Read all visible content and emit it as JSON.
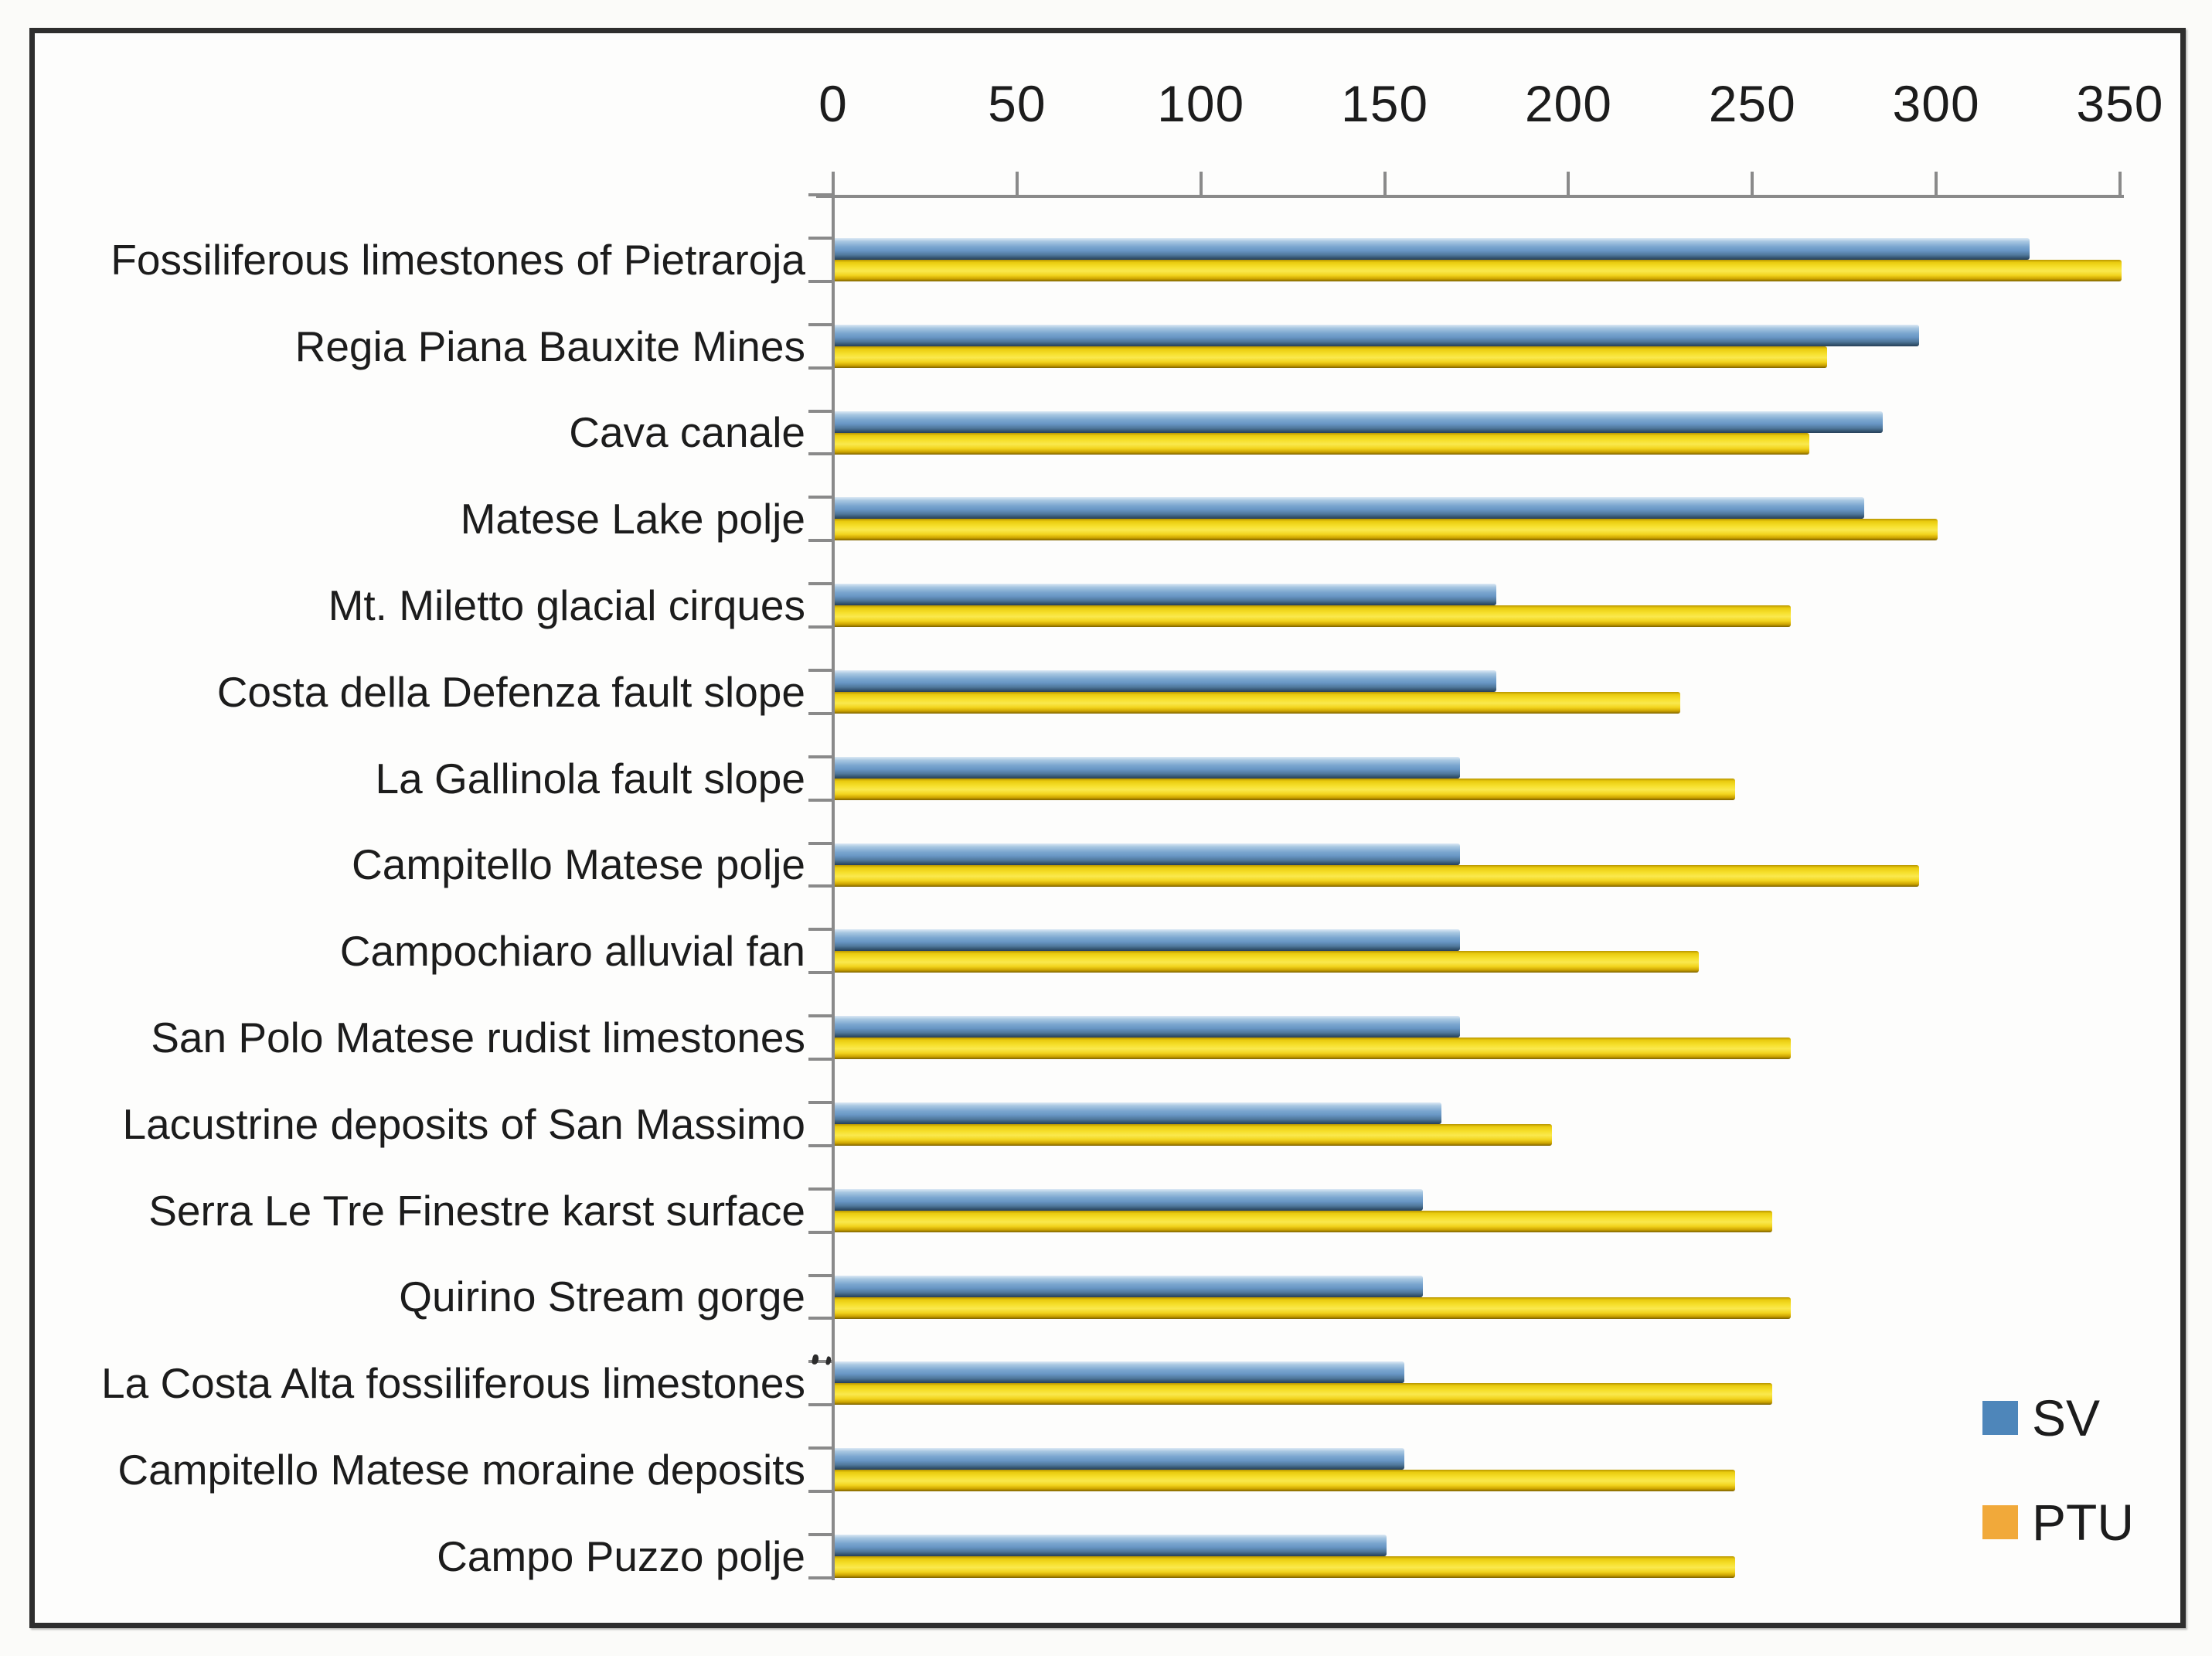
{
  "figure": {
    "frame_color": "#2e2e2e",
    "background": "#fdfdfc",
    "axis_color": "#8a8a8a",
    "text_color": "#1c1c1c"
  },
  "axis": {
    "tick_labels": [
      "0",
      "50",
      "100",
      "150",
      "200",
      "250",
      "300",
      "350"
    ],
    "tick_values": [
      0,
      50,
      100,
      150,
      200,
      250,
      300,
      350
    ]
  },
  "legend": {
    "items": [
      {
        "label": "SV",
        "color": "#4e86ba"
      },
      {
        "label": "PTU",
        "color": "#f1a93a"
      }
    ]
  },
  "chart_data": {
    "type": "bar",
    "orientation": "horizontal",
    "title": "",
    "xlabel": "",
    "ylabel": "",
    "xlim": [
      0,
      350
    ],
    "tick_step": 50,
    "value_axis_position": "top",
    "grid": false,
    "legend_position": "inside-right",
    "categories": [
      "Fossiliferous limestones of Pietraroja",
      "Regia Piana Bauxite Mines",
      "Cava canale",
      "Matese Lake polje",
      "Mt. Miletto glacial cirques",
      "Costa della Defenza fault slope",
      "La Gallinola fault slope",
      "Campitello Matese polje",
      "Campochiaro alluvial fan",
      "San Polo Matese rudist limestones",
      "Lacustrine deposits of San Massimo",
      "Serra Le Tre Finestre karst surface",
      "Quirino Stream gorge",
      "La Costa Alta fossiliferous limestones",
      "Campitello Matese moraine deposits",
      "Campo Puzzo polje"
    ],
    "series": [
      {
        "name": "SV",
        "color": "#4e86ba",
        "values": [
          325,
          295,
          285,
          280,
          180,
          180,
          170,
          170,
          170,
          170,
          165,
          160,
          160,
          155,
          155,
          150
        ]
      },
      {
        "name": "PTU",
        "color": "#f1a93a",
        "values": [
          350,
          270,
          265,
          300,
          260,
          230,
          245,
          295,
          235,
          260,
          195,
          255,
          260,
          255,
          245,
          245
        ]
      }
    ]
  }
}
